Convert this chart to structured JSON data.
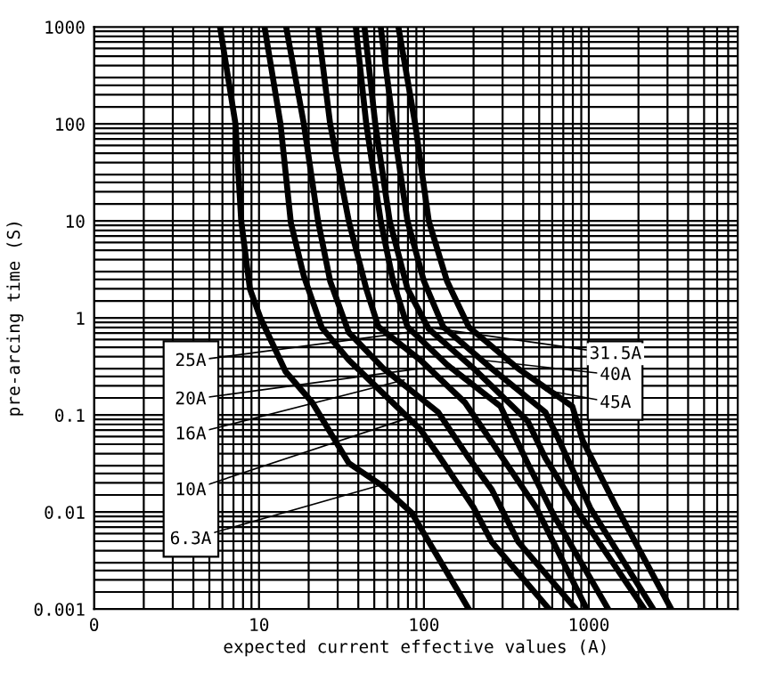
{
  "chart_data": {
    "type": "line",
    "xlabel": "expected current effective values (A)",
    "ylabel": "pre-arcing time (S)",
    "log": "xy",
    "grid": true,
    "xlim": [
      0,
      8000
    ],
    "xticks": [
      0,
      10,
      100,
      1000
    ],
    "ylim": [
      0.001,
      1000
    ],
    "yticks": [
      0.001,
      0.01,
      0.1,
      1,
      10,
      100,
      1000
    ],
    "series": [
      {
        "color": "#000000",
        "x": [
          5.8,
          7.2,
          7.8,
          8.8,
          10.2,
          14.5,
          21,
          35,
          55,
          84,
          187
        ],
        "values": [
          1000,
          100,
          10,
          2.0,
          1.0,
          0.28,
          0.135,
          0.032,
          0.019,
          0.0099,
          0.001
        ]
      },
      {
        "color": "#000000",
        "x": [
          10.8,
          13.5,
          15.6,
          18.7,
          24,
          35,
          57,
          95,
          122,
          201,
          258,
          574
        ],
        "values": [
          1000,
          100,
          9.6,
          2.7,
          0.8,
          0.37,
          0.165,
          0.071,
          0.039,
          0.011,
          0.0049,
          0.001
        ]
      },
      {
        "color": "#000000",
        "x": [
          14.6,
          18.7,
          22.8,
          27,
          35,
          57,
          122,
          187,
          258,
          374,
          834
        ],
        "values": [
          1000,
          100,
          10,
          2.4,
          0.71,
          0.3,
          0.107,
          0.036,
          0.017,
          0.0049,
          0.001
        ]
      },
      {
        "color": "#000000",
        "x": [
          22.8,
          27,
          35,
          44.7,
          53,
          95,
          177,
          291,
          481,
          972
        ],
        "values": [
          1000,
          100,
          10,
          2.0,
          0.81,
          0.37,
          0.135,
          0.039,
          0.011,
          0.001
        ]
      },
      {
        "color": "#000000",
        "x": [
          38.6,
          44.7,
          54.7,
          65,
          79.5,
          138,
          291,
          425,
          617,
          1310
        ],
        "values": [
          1000,
          100,
          10,
          2.4,
          0.81,
          0.33,
          0.123,
          0.032,
          0.0091,
          0.001
        ]
      },
      {
        "color": "#000000",
        "x": [
          43.6,
          50.7,
          62,
          79.5,
          107,
          201,
          425,
          545,
          897,
          2170
        ],
        "values": [
          1000,
          100,
          10,
          2.0,
          0.77,
          0.3,
          0.087,
          0.036,
          0.0091,
          0.001
        ]
      },
      {
        "color": "#000000",
        "x": [
          54.7,
          65,
          79.5,
          100,
          131,
          258,
          545,
          650,
          1020,
          2460
        ],
        "values": [
          1000,
          100,
          10,
          2.4,
          0.81,
          0.3,
          0.107,
          0.058,
          0.011,
          0.001
        ]
      },
      {
        "color": "#000000",
        "x": [
          70,
          88.5,
          107,
          138,
          187,
          374,
          794,
          920,
          1480,
          3160
        ],
        "values": [
          1000,
          100,
          10,
          2.4,
          0.81,
          0.3,
          0.123,
          0.054,
          0.011,
          0.001
        ]
      }
    ],
    "annotations": [
      {
        "text": "25A",
        "x": 79.5,
        "y": 0.71
      },
      {
        "text": "20A",
        "x": 107,
        "y": 0.31
      },
      {
        "text": "16A",
        "x": 76,
        "y": 0.23
      },
      {
        "text": "10A",
        "x": 80,
        "y": 0.093
      },
      {
        "text": "6.3A",
        "x": 55,
        "y": 0.019
      },
      {
        "text": "31.5A",
        "x": 113,
        "y": 0.79
      },
      {
        "text": "40A",
        "x": 218,
        "y": 0.37
      },
      {
        "text": "45A",
        "x": 545,
        "y": 0.18
      }
    ]
  }
}
